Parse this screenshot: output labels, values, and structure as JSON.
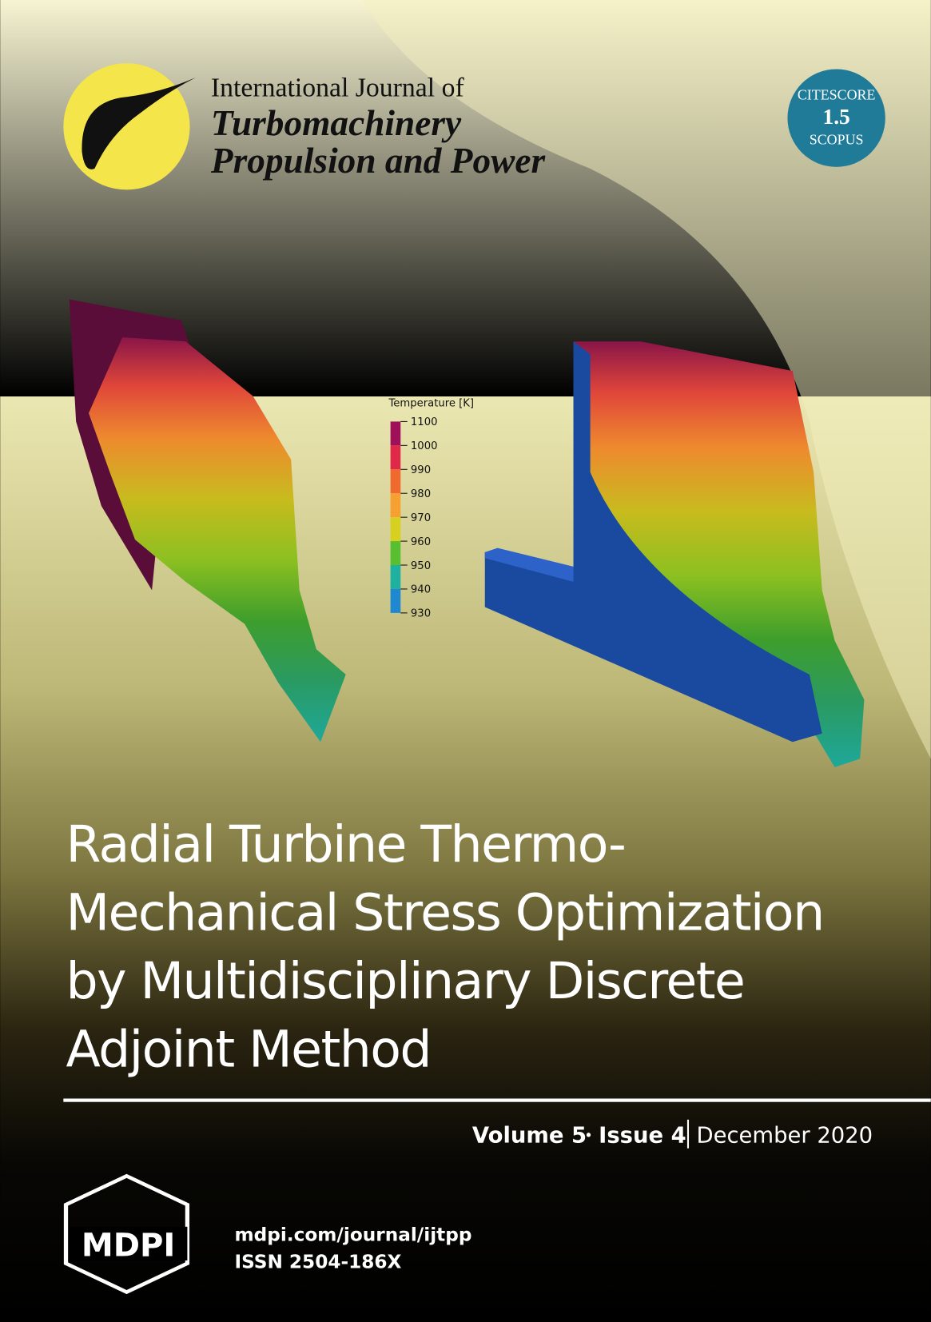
{
  "journal": {
    "line1": "International Journal of",
    "line2": "Turbomachinery",
    "line3": "Propulsion and Power"
  },
  "badge": {
    "label": "CITESCORE",
    "score": "1.5",
    "source": "SCOPUS"
  },
  "figure": {
    "legend_title": "Temperature [K]",
    "legend_ticks": [
      "1100",
      "1000",
      "990",
      "980",
      "970",
      "960",
      "950",
      "940",
      "930"
    ]
  },
  "article_title": [
    "Radial Turbine Thermo-",
    "Mechanical Stress Optimization",
    "by Multidisciplinary Discrete",
    "Adjoint Method"
  ],
  "issue": {
    "volume": "Volume 5",
    "issue": "Issue 4",
    "date": "December 2020"
  },
  "publisher": {
    "logo": "MDPI",
    "url": "mdpi.com/journal/ijtpp",
    "issn": "ISSN 2504-186X"
  }
}
